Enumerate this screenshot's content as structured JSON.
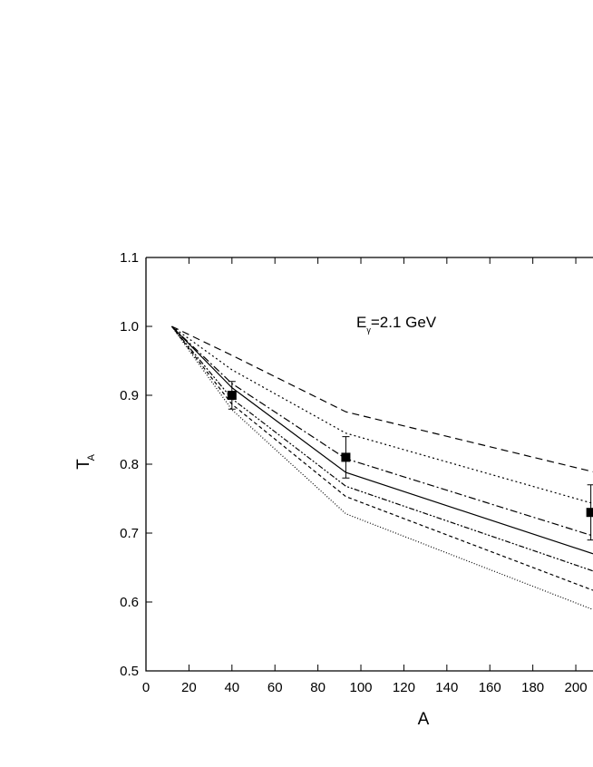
{
  "chart_data": {
    "type": "line",
    "xlabel": "A",
    "ylabel": {
      "main": "T",
      "sub": "A"
    },
    "annotation": {
      "main": "E",
      "sub": "γ",
      "rest": "=2.1 GeV"
    },
    "x": [
      12,
      40,
      93,
      208
    ],
    "series": [
      {
        "color": "#000000",
        "dash": "8,5",
        "values": [
          1.0,
          0.958,
          0.876,
          0.789
        ]
      },
      {
        "color": "#000000",
        "dash": "2,3",
        "values": [
          1.0,
          0.937,
          0.845,
          0.743
        ]
      },
      {
        "color": "#000000",
        "dash": "8,3,2,3",
        "values": [
          1.0,
          0.917,
          0.808,
          0.696
        ]
      },
      {
        "color": "#000000",
        "dash": "none",
        "values": [
          1.0,
          0.911,
          0.788,
          0.67
        ]
      },
      {
        "color": "#000000",
        "dash": "6,2,2,2,2,2",
        "values": [
          1.0,
          0.895,
          0.768,
          0.645
        ]
      },
      {
        "color": "#000000",
        "dash": "4,3",
        "values": [
          1.0,
          0.887,
          0.753,
          0.617
        ]
      },
      {
        "color": "#000000",
        "dash": "1,2",
        "values": [
          1.0,
          0.879,
          0.728,
          0.589
        ]
      }
    ],
    "points": {
      "color": "#000000",
      "x": [
        40,
        93,
        207
      ],
      "values": [
        0.9,
        0.81,
        0.73
      ],
      "errors": [
        0.02,
        0.03,
        0.04
      ]
    },
    "xlim": [
      0,
      208
    ],
    "ylim": [
      0.5,
      1.1
    ],
    "xticks": [
      0,
      20,
      40,
      60,
      80,
      100,
      120,
      140,
      160,
      180,
      200
    ],
    "yticks": [
      0.5,
      0.6,
      0.7,
      0.8,
      0.9,
      {
        "value": 1,
        "label": "1.0"
      },
      1.1
    ]
  }
}
